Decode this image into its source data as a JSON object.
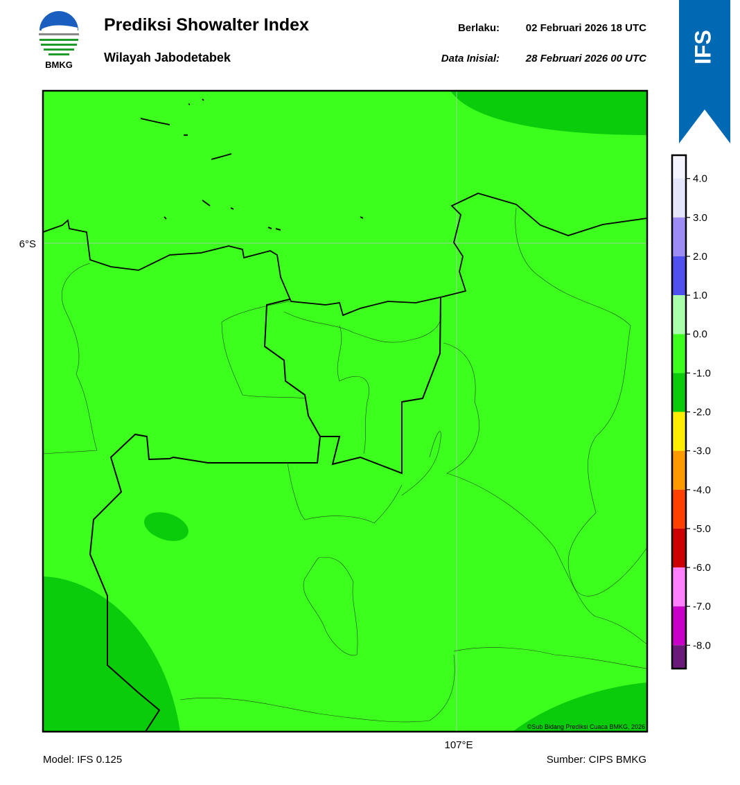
{
  "logo": {
    "text": "BMKG"
  },
  "header": {
    "title": "Prediksi Showalter Index",
    "subtitle": "Wilayah Jabodetabek",
    "valid_label": "Berlaku:",
    "valid_value": "02 Februari 2026 18 UTC",
    "init_label": "Data Inisial:",
    "init_value": "28 Februari 2026 00 UTC"
  },
  "ribbon": {
    "text": "IFS"
  },
  "map": {
    "lat_label": "6°S",
    "lon_label": "107°E",
    "copyright": "©Sub Bidang Prediksi Cuaca BMKG, 2026"
  },
  "colorbar": {
    "lim": [
      -8.6,
      4.6
    ],
    "ticks": [
      {
        "value": 4,
        "label": "4.0"
      },
      {
        "value": 3,
        "label": "3.0"
      },
      {
        "value": 2,
        "label": "2.0"
      },
      {
        "value": 1,
        "label": "1.0"
      },
      {
        "value": 0,
        "label": "0.0"
      },
      {
        "value": -1,
        "label": "-1.0"
      },
      {
        "value": -2,
        "label": "-2.0"
      },
      {
        "value": -3,
        "label": "-3.0"
      },
      {
        "value": -4,
        "label": "-4.0"
      },
      {
        "value": -5,
        "label": "-5.0"
      },
      {
        "value": -6,
        "label": "-6.0"
      },
      {
        "value": -7,
        "label": "-7.0"
      },
      {
        "value": -8,
        "label": "-8.0"
      }
    ],
    "colors": [
      "#f4f4ff",
      "#e4e4fb",
      "#9c8cf4",
      "#5050f0",
      "#aaffaa",
      "#3cff1e",
      "#0acc0a",
      "#ffee00",
      "#ff9900",
      "#ff4000",
      "#cc0000",
      "#ff80ff",
      "#c800c8",
      "#6a1a78"
    ]
  },
  "footer": {
    "model": "Model: IFS 0.125",
    "source": "Sumber: CIPS BMKG"
  }
}
